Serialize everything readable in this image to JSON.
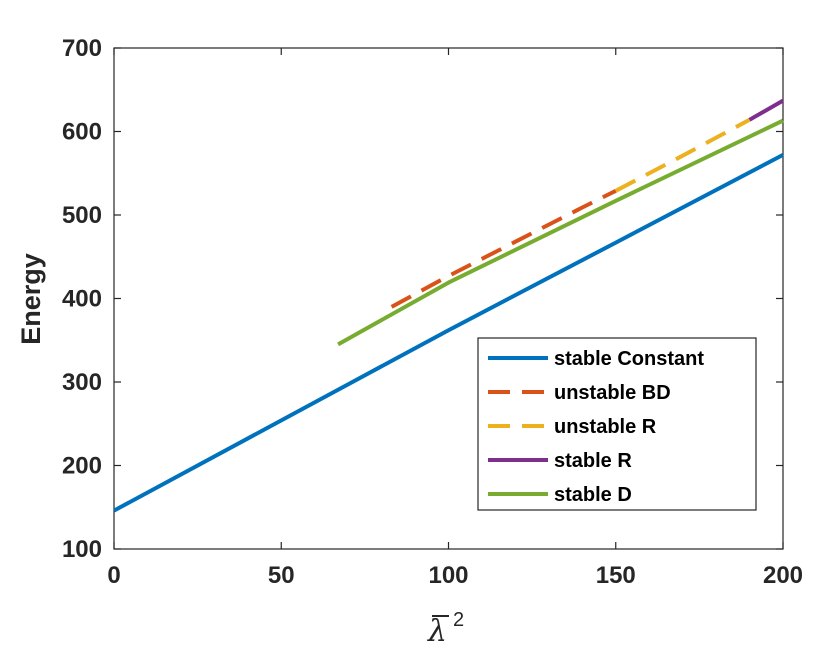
{
  "chart_data": {
    "type": "line",
    "xlabel": "λ",
    "xlabel_superscript": "2",
    "xlabel_overbar": true,
    "ylabel": "Energy",
    "xlim": [
      0,
      200
    ],
    "ylim": [
      100,
      700
    ],
    "xticks": [
      0,
      50,
      100,
      150,
      200
    ],
    "yticks": [
      100,
      200,
      300,
      400,
      500,
      600,
      700
    ],
    "xtick_labels": [
      "0",
      "50",
      "100",
      "150",
      "200"
    ],
    "ytick_labels": [
      "100",
      "200",
      "300",
      "400",
      "500",
      "600",
      "700"
    ],
    "grid": false,
    "legend_position": "bottom-right",
    "series": [
      {
        "name": "stable Constant",
        "color": "#0072BD",
        "style": "solid",
        "x": [
          0,
          50,
          100,
          150,
          200
        ],
        "y": [
          146,
          254,
          362,
          467,
          572
        ]
      },
      {
        "name": "unstable BD",
        "color": "#D95319",
        "style": "dashed",
        "x": [
          83,
          100,
          120,
          140,
          150
        ],
        "y": [
          390,
          427,
          468,
          509,
          529
        ]
      },
      {
        "name": "unstable R",
        "color": "#EDB120",
        "style": "dashed",
        "x": [
          150,
          170,
          190
        ],
        "y": [
          529,
          571,
          614
        ]
      },
      {
        "name": "stable R",
        "color": "#7E2F8E",
        "style": "solid",
        "x": [
          190,
          200
        ],
        "y": [
          614,
          637
        ]
      },
      {
        "name": "stable D",
        "color": "#77AC30",
        "style": "solid",
        "x": [
          67,
          100,
          150,
          200
        ],
        "y": [
          345,
          419,
          517,
          613
        ]
      }
    ]
  }
}
